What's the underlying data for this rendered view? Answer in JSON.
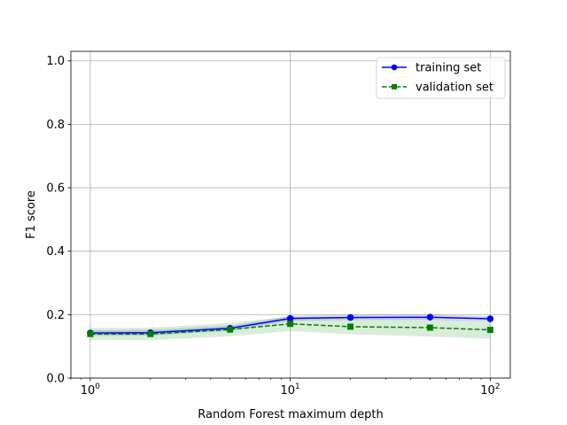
{
  "chart_data": {
    "type": "line",
    "title": "",
    "xlabel": "Random Forest maximum depth",
    "ylabel": "F1 score",
    "xscale": "log",
    "xlim": [
      0.8,
      126
    ],
    "ylim": [
      0.0,
      1.03
    ],
    "grid": true,
    "legend_position": "top-right",
    "x_ticks": [
      {
        "value": 1,
        "base": "10",
        "exp": "0"
      },
      {
        "value": 10,
        "base": "10",
        "exp": "1"
      },
      {
        "value": 100,
        "base": "10",
        "exp": "2"
      }
    ],
    "y_ticks": [
      {
        "value": 0.0,
        "label": "0.0"
      },
      {
        "value": 0.2,
        "label": "0.2"
      },
      {
        "value": 0.4,
        "label": "0.4"
      },
      {
        "value": 0.6,
        "label": "0.6"
      },
      {
        "value": 0.8,
        "label": "0.8"
      },
      {
        "value": 1.0,
        "label": "1.0"
      }
    ],
    "x": [
      1,
      2,
      5,
      10,
      20,
      50,
      100
    ],
    "series": [
      {
        "name": "training set",
        "color": "#0000ff",
        "marker": "circle",
        "linestyle": "solid",
        "band_color": "#00008b",
        "values": [
          0.142,
          0.143,
          0.157,
          0.188,
          0.191,
          0.192,
          0.187
        ],
        "lower": [
          0.133,
          0.134,
          0.149,
          0.18,
          0.183,
          0.184,
          0.179
        ],
        "upper": [
          0.151,
          0.152,
          0.165,
          0.196,
          0.199,
          0.2,
          0.195
        ]
      },
      {
        "name": "validation set",
        "color": "#008000",
        "marker": "square",
        "linestyle": "dashed",
        "band_color": "#008000",
        "values": [
          0.139,
          0.139,
          0.153,
          0.171,
          0.162,
          0.159,
          0.152
        ],
        "lower": [
          0.12,
          0.119,
          0.132,
          0.148,
          0.138,
          0.131,
          0.124
        ],
        "upper": [
          0.158,
          0.159,
          0.174,
          0.194,
          0.186,
          0.187,
          0.18
        ]
      }
    ]
  }
}
